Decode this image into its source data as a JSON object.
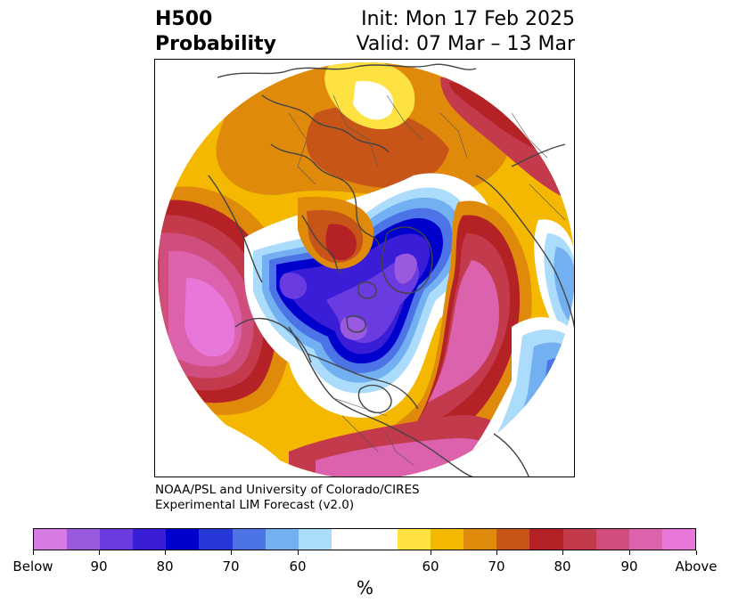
{
  "title": {
    "left_line1": "H500",
    "left_line2": "Probability",
    "right_line1": "Init: Mon 17 Feb 2025",
    "right_line2": "Valid: 07 Mar – 13 Mar"
  },
  "credit": {
    "line1": "NOAA/PSL and University of Colorado/CIRES",
    "line2": "Experimental LIM Forecast (v2.0)"
  },
  "colorbar": {
    "unit": "%",
    "segments": [
      {
        "color": "#d87ae3",
        "wide": false
      },
      {
        "color": "#9a5ae0",
        "wide": false
      },
      {
        "color": "#6a3be0",
        "wide": false
      },
      {
        "color": "#3a1dd6",
        "wide": false
      },
      {
        "color": "#0000cc",
        "wide": false
      },
      {
        "color": "#2638d8",
        "wide": false
      },
      {
        "color": "#4d74e6",
        "wide": false
      },
      {
        "color": "#73b0f2",
        "wide": false
      },
      {
        "color": "#abdcfb",
        "wide": false
      },
      {
        "color": "#ffffff",
        "wide": true
      },
      {
        "color": "#fde242",
        "wide": false
      },
      {
        "color": "#f4b800",
        "wide": false
      },
      {
        "color": "#e08a0c",
        "wide": false
      },
      {
        "color": "#c75518",
        "wide": false
      },
      {
        "color": "#b42226",
        "wide": false
      },
      {
        "color": "#c23a4c",
        "wide": false
      },
      {
        "color": "#cf4e7e",
        "wide": false
      },
      {
        "color": "#dd62ae",
        "wide": false
      },
      {
        "color": "#e778da",
        "wide": false
      }
    ],
    "tick_labels": [
      "Below",
      "90",
      "80",
      "70",
      "60",
      "60",
      "70",
      "80",
      "90",
      "Above"
    ]
  },
  "map": {
    "projection": "north-polar-stereographic",
    "field": "500-hPa height anomaly probability",
    "colors": {
      "above_strong": "#e778da",
      "above_mid": "#dd62ae",
      "above_low": "#cf4e7e",
      "red": "#b42226",
      "orange_red": "#c75518",
      "orange": "#e08a0c",
      "gold": "#f4b800",
      "yellow": "#fde242",
      "neutral": "#ffffff",
      "below_light": "#abdcfb",
      "below_sky": "#73b0f2",
      "below_blue": "#4d74e6",
      "below_mid": "#2638d8",
      "below_deep": "#0000cc",
      "below_indigo": "#3a1dd6",
      "below_violet": "#6a3be0",
      "below_purple": "#9a5ae0",
      "coastline": "#444444"
    }
  }
}
